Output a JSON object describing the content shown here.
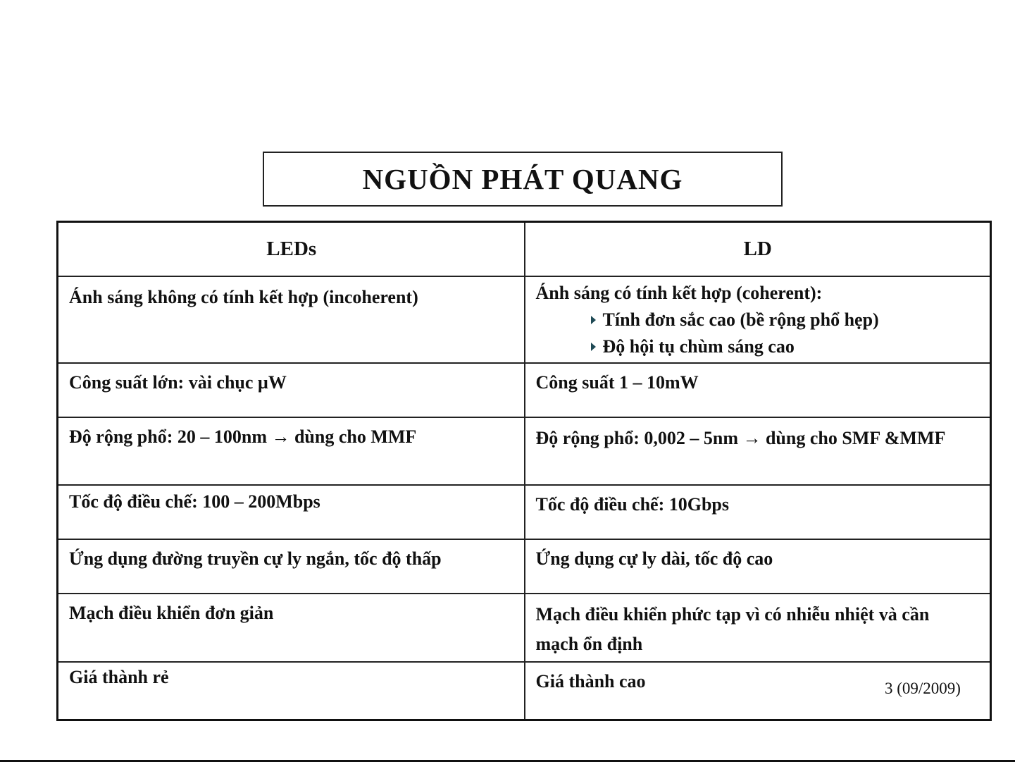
{
  "title": "NGUỒN PHÁT QUANG",
  "table": {
    "headers": [
      "LEDs",
      "LD"
    ],
    "rows": [
      {
        "led": "Ánh sáng không có tính kết hợp (incoherent)",
        "ld": "Ánh sáng có tính kết hợp (coherent):",
        "ld_bullets": [
          "Tính đơn sắc cao (bề rộng phổ hẹp)",
          "Độ hội tụ chùm sáng cao"
        ]
      },
      {
        "led": "Công suất lớn: vài chục µW",
        "ld": "Công suất 1 – 10mW"
      },
      {
        "led": "Độ rộng phổ: 20 – 100nm → dùng cho MMF",
        "ld": "Độ rộng phổ: 0,002 – 5nm → dùng cho SMF &MMF"
      },
      {
        "led": "Tốc độ điều chế: 100 – 200Mbps",
        "ld": "Tốc độ điều chế: 10Gbps"
      },
      {
        "led": "Ứng dụng đường truyền cự ly ngắn, tốc độ thấp",
        "ld": "Ứng dụng cự ly dài, tốc độ cao"
      },
      {
        "led": "Mạch điều khiển đơn giản",
        "ld": "Mạch điều khiển phức tạp vì có nhiễu nhiệt và cần mạch ổn định"
      },
      {
        "led": "Giá thành rẻ",
        "ld": "Giá thành cao"
      }
    ]
  },
  "footer": "3 (09/2009)",
  "colors": {
    "bullet": "#1f4a55"
  }
}
